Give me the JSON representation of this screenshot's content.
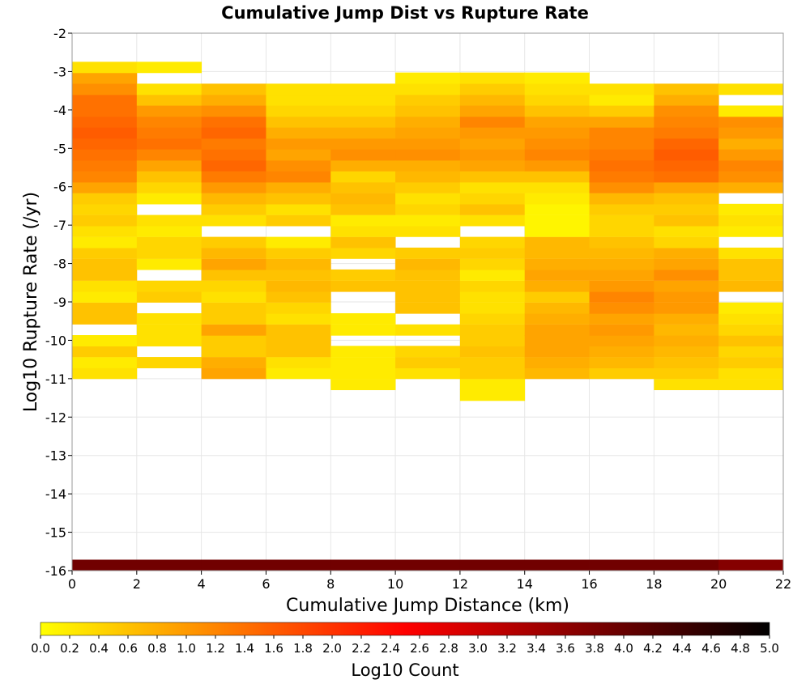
{
  "chart_data": {
    "type": "heatmap",
    "title": "Cumulative Jump Dist vs Rupture Rate",
    "xlabel": "Cumulative Jump Distance (km)",
    "ylabel": "Log10 Rupture Rate (/yr)",
    "xlim": [
      0,
      22
    ],
    "ylim": [
      -16,
      -2
    ],
    "x_ticks": [
      "0",
      "2",
      "4",
      "6",
      "8",
      "10",
      "12",
      "14",
      "16",
      "18",
      "20",
      "22"
    ],
    "y_ticks": [
      "-2",
      "-3",
      "-4",
      "-5",
      "-6",
      "-7",
      "-8",
      "-9",
      "-10",
      "-11",
      "-12",
      "-13",
      "-14",
      "-15",
      "-16"
    ],
    "grid": true,
    "x_bin_width": 2,
    "y_bin_height": 0.285,
    "y_bin_reference": -16,
    "colorbar": {
      "label": "Log10 Count",
      "range": [
        0,
        5
      ],
      "ticks": [
        "0.0",
        "0.2",
        "0.4",
        "0.6",
        "0.8",
        "1.0",
        "1.2",
        "1.4",
        "1.6",
        "1.8",
        "2.0",
        "2.2",
        "2.4",
        "2.6",
        "2.8",
        "3.0",
        "3.2",
        "3.4",
        "3.6",
        "3.8",
        "4.0",
        "4.2",
        "4.4",
        "4.6",
        "4.8",
        "5.0"
      ],
      "colors": [
        "#ffff00",
        "#ff8000",
        "#ff0000",
        "#800000",
        "#000000"
      ]
    },
    "columns": [
      {
        "x": 1,
        "cells": [
          [
            -16,
            3.9
          ],
          [
            -11,
            0.3
          ],
          [
            -10.72,
            0.2
          ],
          [
            -10.43,
            0.5
          ],
          [
            -10.15,
            0.2
          ],
          [
            -9.58,
            0.6
          ],
          [
            -9.3,
            0.6
          ],
          [
            -9.01,
            0.2
          ],
          [
            -8.73,
            0.3
          ],
          [
            -8.44,
            0.6
          ],
          [
            -8.16,
            0.6
          ],
          [
            -7.87,
            0.5
          ],
          [
            -7.59,
            0.2
          ],
          [
            -7.3,
            0.3
          ],
          [
            -7.02,
            0.5
          ],
          [
            -6.73,
            0.4
          ],
          [
            -6.45,
            0.5
          ],
          [
            -6.16,
            0.9
          ],
          [
            -5.88,
            1.2
          ],
          [
            -5.59,
            1.3
          ],
          [
            -5.31,
            1.4
          ],
          [
            -5.02,
            1.5
          ],
          [
            -4.74,
            1.6
          ],
          [
            -4.45,
            1.5
          ],
          [
            -4.17,
            1.4
          ],
          [
            -3.88,
            1.4
          ],
          [
            -3.6,
            1.1
          ],
          [
            -3.31,
            0.9
          ],
          [
            -3.03,
            0.3
          ]
        ]
      },
      {
        "x": 3,
        "cells": [
          [
            -16,
            3.9
          ],
          [
            -10.72,
            0.4
          ],
          [
            -10.15,
            0.3
          ],
          [
            -9.87,
            0.3
          ],
          [
            -9.58,
            0.3
          ],
          [
            -9.01,
            0.5
          ],
          [
            -8.73,
            0.4
          ],
          [
            -8.16,
            0.2
          ],
          [
            -7.87,
            0.4
          ],
          [
            -7.59,
            0.4
          ],
          [
            -7.3,
            0.2
          ],
          [
            -7.02,
            0.3
          ],
          [
            -6.45,
            0.2
          ],
          [
            -6.16,
            0.4
          ],
          [
            -5.88,
            0.6
          ],
          [
            -5.59,
            0.9
          ],
          [
            -5.31,
            1.2
          ],
          [
            -5.02,
            1.4
          ],
          [
            -4.74,
            1.3
          ],
          [
            -4.45,
            1.2
          ],
          [
            -4.17,
            1.0
          ],
          [
            -3.88,
            0.6
          ],
          [
            -3.6,
            0.3
          ],
          [
            -3.03,
            0.2
          ]
        ]
      },
      {
        "x": 5,
        "cells": [
          [
            -16,
            3.9
          ],
          [
            -11,
            0.9
          ],
          [
            -10.72,
            0.8
          ],
          [
            -10.43,
            0.5
          ],
          [
            -10.15,
            0.5
          ],
          [
            -9.87,
            0.9
          ],
          [
            -9.58,
            0.5
          ],
          [
            -9.3,
            0.5
          ],
          [
            -9.01,
            0.3
          ],
          [
            -8.73,
            0.4
          ],
          [
            -8.44,
            0.6
          ],
          [
            -8.16,
            0.9
          ],
          [
            -7.87,
            0.7
          ],
          [
            -7.59,
            0.5
          ],
          [
            -7.02,
            0.3
          ],
          [
            -6.73,
            0.5
          ],
          [
            -6.45,
            0.7
          ],
          [
            -6.16,
            1.0
          ],
          [
            -5.88,
            1.3
          ],
          [
            -5.59,
            1.5
          ],
          [
            -5.31,
            1.4
          ],
          [
            -5.02,
            1.3
          ],
          [
            -4.74,
            1.5
          ],
          [
            -4.45,
            1.4
          ],
          [
            -4.17,
            1.1
          ],
          [
            -3.88,
            0.8
          ],
          [
            -3.6,
            0.6
          ]
        ]
      },
      {
        "x": 7,
        "cells": [
          [
            -16,
            3.9
          ],
          [
            -11,
            0.2
          ],
          [
            -10.72,
            0.3
          ],
          [
            -10.43,
            0.6
          ],
          [
            -10.15,
            0.6
          ],
          [
            -9.87,
            0.6
          ],
          [
            -9.58,
            0.3
          ],
          [
            -9.3,
            0.4
          ],
          [
            -9.01,
            0.6
          ],
          [
            -8.73,
            0.7
          ],
          [
            -8.44,
            0.6
          ],
          [
            -8.16,
            0.7
          ],
          [
            -7.87,
            0.5
          ],
          [
            -7.59,
            0.2
          ],
          [
            -7.02,
            0.5
          ],
          [
            -6.73,
            0.3
          ],
          [
            -6.45,
            0.6
          ],
          [
            -6.16,
            0.8
          ],
          [
            -5.88,
            1.2
          ],
          [
            -5.59,
            1.1
          ],
          [
            -5.31,
            0.9
          ],
          [
            -5.02,
            1.0
          ],
          [
            -4.74,
            0.8
          ],
          [
            -4.45,
            0.6
          ],
          [
            -4.17,
            0.4
          ],
          [
            -3.88,
            0.3
          ],
          [
            -3.6,
            0.3
          ]
        ]
      },
      {
        "x": 9,
        "cells": [
          [
            -16,
            3.9
          ],
          [
            -11.29,
            0.2
          ],
          [
            -11,
            0.2
          ],
          [
            -10.72,
            0.2
          ],
          [
            -10.43,
            0.2
          ],
          [
            -9.87,
            0.2
          ],
          [
            -9.58,
            0.2
          ],
          [
            -8.73,
            0.6
          ],
          [
            -8.44,
            0.5
          ],
          [
            -7.87,
            0.4
          ],
          [
            -7.59,
            0.6
          ],
          [
            -7.3,
            0.3
          ],
          [
            -7.02,
            0.2
          ],
          [
            -6.73,
            0.6
          ],
          [
            -6.45,
            0.7
          ],
          [
            -6.16,
            0.6
          ],
          [
            -5.88,
            0.4
          ],
          [
            -5.59,
            0.8
          ],
          [
            -5.31,
            1.1
          ],
          [
            -5.02,
            1.0
          ],
          [
            -4.74,
            0.8
          ],
          [
            -4.45,
            0.6
          ],
          [
            -4.17,
            0.4
          ],
          [
            -3.88,
            0.3
          ],
          [
            -3.6,
            0.3
          ]
        ]
      },
      {
        "x": 11,
        "cells": [
          [
            -16,
            3.9
          ],
          [
            -11,
            0.3
          ],
          [
            -10.72,
            0.5
          ],
          [
            -10.43,
            0.4
          ],
          [
            -9.87,
            0.3
          ],
          [
            -9.3,
            0.6
          ],
          [
            -9.01,
            0.6
          ],
          [
            -8.73,
            0.6
          ],
          [
            -8.44,
            0.6
          ],
          [
            -8.16,
            0.7
          ],
          [
            -7.87,
            0.5
          ],
          [
            -7.3,
            0.3
          ],
          [
            -7.02,
            0.2
          ],
          [
            -6.73,
            0.4
          ],
          [
            -6.45,
            0.3
          ],
          [
            -6.16,
            0.5
          ],
          [
            -5.88,
            0.7
          ],
          [
            -5.59,
            0.8
          ],
          [
            -5.31,
            1.1
          ],
          [
            -5.02,
            1.0
          ],
          [
            -4.74,
            0.9
          ],
          [
            -4.45,
            0.8
          ],
          [
            -4.17,
            0.6
          ],
          [
            -3.88,
            0.5
          ],
          [
            -3.6,
            0.3
          ],
          [
            -3.31,
            0.2
          ]
        ]
      },
      {
        "x": 13,
        "cells": [
          [
            -16,
            3.9
          ],
          [
            -11.57,
            0.2
          ],
          [
            -11.29,
            0.2
          ],
          [
            -11,
            0.5
          ],
          [
            -10.72,
            0.5
          ],
          [
            -10.43,
            0.6
          ],
          [
            -10.15,
            0.5
          ],
          [
            -9.87,
            0.5
          ],
          [
            -9.58,
            0.4
          ],
          [
            -9.3,
            0.3
          ],
          [
            -9.01,
            0.3
          ],
          [
            -8.73,
            0.4
          ],
          [
            -8.44,
            0.2
          ],
          [
            -8.16,
            0.4
          ],
          [
            -7.87,
            0.5
          ],
          [
            -7.59,
            0.4
          ],
          [
            -7.02,
            0.3
          ],
          [
            -6.73,
            0.6
          ],
          [
            -6.45,
            0.4
          ],
          [
            -6.16,
            0.3
          ],
          [
            -5.88,
            0.6
          ],
          [
            -5.59,
            0.9
          ],
          [
            -5.31,
            1.0
          ],
          [
            -5.02,
            0.9
          ],
          [
            -4.74,
            1.0
          ],
          [
            -4.45,
            1.2
          ],
          [
            -4.17,
            0.9
          ],
          [
            -3.88,
            0.7
          ],
          [
            -3.6,
            0.5
          ],
          [
            -3.31,
            0.3
          ]
        ]
      },
      {
        "x": 15,
        "cells": [
          [
            -16,
            3.9
          ],
          [
            -11,
            0.7
          ],
          [
            -10.72,
            0.8
          ],
          [
            -10.43,
            0.9
          ],
          [
            -10.15,
            0.9
          ],
          [
            -9.87,
            0.9
          ],
          [
            -9.58,
            0.8
          ],
          [
            -9.3,
            0.7
          ],
          [
            -9.01,
            0.5
          ],
          [
            -8.73,
            0.8
          ],
          [
            -8.44,
            0.9
          ],
          [
            -8.16,
            0.8
          ],
          [
            -7.87,
            0.7
          ],
          [
            -7.59,
            0.7
          ],
          [
            -7.3,
            0.1
          ],
          [
            -7.02,
            0.1
          ],
          [
            -6.73,
            0.1
          ],
          [
            -6.45,
            0.2
          ],
          [
            -6.16,
            0.3
          ],
          [
            -5.88,
            0.6
          ],
          [
            -5.59,
            1.0
          ],
          [
            -5.31,
            1.2
          ],
          [
            -5.02,
            1.1
          ],
          [
            -4.74,
            1.0
          ],
          [
            -4.45,
            0.9
          ],
          [
            -4.17,
            0.6
          ],
          [
            -3.88,
            0.4
          ],
          [
            -3.6,
            0.3
          ],
          [
            -3.31,
            0.2
          ]
        ]
      },
      {
        "x": 17,
        "cells": [
          [
            -16,
            3.9
          ],
          [
            -11,
            0.5
          ],
          [
            -10.72,
            0.7
          ],
          [
            -10.43,
            0.8
          ],
          [
            -10.15,
            0.9
          ],
          [
            -9.87,
            1.0
          ],
          [
            -9.58,
            0.9
          ],
          [
            -9.3,
            1.1
          ],
          [
            -9.01,
            1.2
          ],
          [
            -8.73,
            1.0
          ],
          [
            -8.44,
            0.9
          ],
          [
            -8.16,
            0.8
          ],
          [
            -7.87,
            0.7
          ],
          [
            -7.59,
            0.6
          ],
          [
            -7.3,
            0.4
          ],
          [
            -7.02,
            0.4
          ],
          [
            -6.73,
            0.5
          ],
          [
            -6.45,
            0.7
          ],
          [
            -6.16,
            1.1
          ],
          [
            -5.88,
            1.3
          ],
          [
            -5.59,
            1.4
          ],
          [
            -5.31,
            1.3
          ],
          [
            -5.02,
            1.2
          ],
          [
            -4.74,
            1.2
          ],
          [
            -4.45,
            0.9
          ],
          [
            -4.17,
            0.5
          ],
          [
            -3.88,
            0.2
          ],
          [
            -3.6,
            0.3
          ]
        ]
      },
      {
        "x": 19,
        "cells": [
          [
            -16,
            3.9
          ],
          [
            -11.29,
            0.3
          ],
          [
            -11,
            0.5
          ],
          [
            -10.72,
            0.6
          ],
          [
            -10.43,
            0.7
          ],
          [
            -10.15,
            0.8
          ],
          [
            -9.87,
            0.7
          ],
          [
            -9.58,
            0.8
          ],
          [
            -9.3,
            1.0
          ],
          [
            -9.01,
            1.0
          ],
          [
            -8.73,
            0.9
          ],
          [
            -8.44,
            1.1
          ],
          [
            -8.16,
            0.9
          ],
          [
            -7.87,
            0.8
          ],
          [
            -7.59,
            0.4
          ],
          [
            -7.3,
            0.3
          ],
          [
            -7.02,
            0.6
          ],
          [
            -6.73,
            0.5
          ],
          [
            -6.45,
            0.6
          ],
          [
            -6.16,
            0.9
          ],
          [
            -5.88,
            1.4
          ],
          [
            -5.59,
            1.5
          ],
          [
            -5.31,
            1.6
          ],
          [
            -5.02,
            1.5
          ],
          [
            -4.74,
            1.3
          ],
          [
            -4.45,
            1.2
          ],
          [
            -4.17,
            1.1
          ],
          [
            -3.88,
            0.8
          ],
          [
            -3.6,
            0.6
          ]
        ]
      },
      {
        "x": 21,
        "cells": [
          [
            -16,
            3.7
          ],
          [
            -11.29,
            0.3
          ],
          [
            -11,
            0.3
          ],
          [
            -10.72,
            0.5
          ],
          [
            -10.43,
            0.4
          ],
          [
            -10.15,
            0.6
          ],
          [
            -9.87,
            0.4
          ],
          [
            -9.58,
            0.3
          ],
          [
            -9.3,
            0.2
          ],
          [
            -8.73,
            0.7
          ],
          [
            -8.44,
            0.6
          ],
          [
            -8.16,
            0.6
          ],
          [
            -7.87,
            0.3
          ],
          [
            -7.3,
            0.2
          ],
          [
            -7.02,
            0.3
          ],
          [
            -6.73,
            0.2
          ],
          [
            -6.16,
            0.8
          ],
          [
            -5.88,
            1.1
          ],
          [
            -5.59,
            1.2
          ],
          [
            -5.31,
            1.0
          ],
          [
            -5.02,
            0.8
          ],
          [
            -4.74,
            1.0
          ],
          [
            -4.45,
            1.1
          ],
          [
            -4.17,
            0.2
          ],
          [
            -3.6,
            0.3
          ]
        ]
      }
    ]
  }
}
